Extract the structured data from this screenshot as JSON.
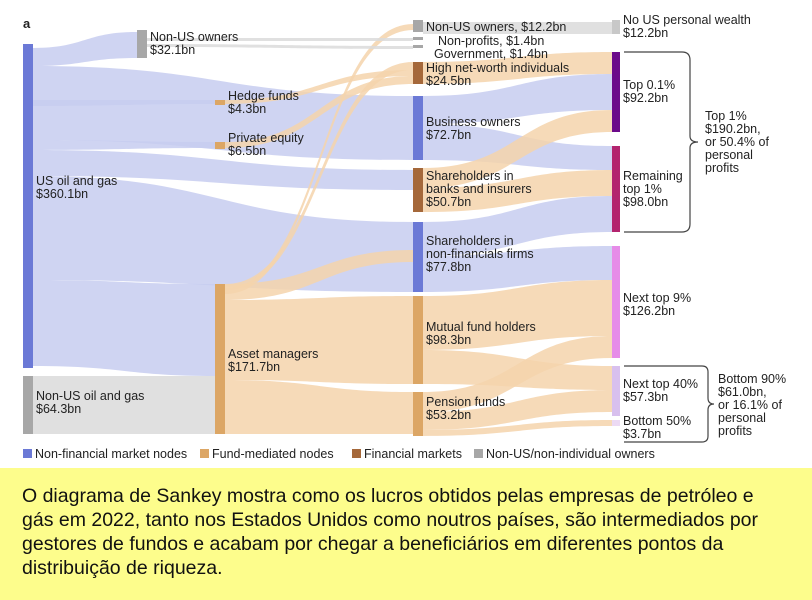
{
  "panel_letter": "a",
  "colors": {
    "non_financial": "#6b79d6",
    "fund": "#dca665",
    "financial": "#a5683a",
    "non_us": "#a7a7a7",
    "top01": "#6b0a8a",
    "remaining1": "#b3246e",
    "nexttop9": "#e68ce8",
    "next40": "#d8c0ee",
    "bottom50": "#ecdaf4",
    "nowealth": "#c8c8c8",
    "flow_blue": "#c7cdf0",
    "flow_orange": "#f4d4ab",
    "flow_gray": "#dadada"
  },
  "nodes": {
    "us_oil": {
      "name": "US oil and gas",
      "value": "$360.1bn"
    },
    "nonus_oil": {
      "name": "Non-US oil and gas",
      "value": "$64.3bn"
    },
    "nonus_owners1": {
      "name": "Non-US owners",
      "value": "$32.1bn"
    },
    "hedge": {
      "name": "Hedge funds",
      "value": "$4.3bn"
    },
    "pe": {
      "name": "Private equity",
      "value": "$6.5bn"
    },
    "asset": {
      "name": "Asset managers",
      "value": "$171.7bn"
    },
    "nonus_owners2": {
      "label": "Non-US owners, $12.2bn"
    },
    "nonprofits": {
      "label": "Non-profits, $1.4bn"
    },
    "government": {
      "label": "Government, $1.4bn"
    },
    "hnwi": {
      "name": "High net-worth individuals",
      "value": "$24.5bn"
    },
    "business": {
      "name": "Business owners",
      "value": "$72.7bn"
    },
    "sh_banks": {
      "name1": "Shareholders in",
      "name2": "banks and insurers",
      "value": "$50.7bn"
    },
    "sh_nonfin": {
      "name1": "Shareholders in",
      "name2": "non-financials firms",
      "value": "$77.8bn"
    },
    "mutual": {
      "name": "Mutual fund holders",
      "value": "$98.3bn"
    },
    "pension": {
      "name": "Pension funds",
      "value": "$53.2bn"
    },
    "nowealth": {
      "name": "No US personal wealth",
      "value": "$12.2bn"
    },
    "top01": {
      "name": "Top 0.1%",
      "value": "$92.2bn"
    },
    "remaining1": {
      "name1": "Remaining",
      "name2": "top 1%",
      "value": "$98.0bn"
    },
    "nexttop9": {
      "name": "Next top 9%",
      "value": "$126.2bn"
    },
    "next40": {
      "name": "Next top 40%",
      "value": "$57.3bn"
    },
    "bottom50": {
      "name": "Bottom 50%",
      "value": "$3.7bn"
    }
  },
  "brackets": {
    "top1": {
      "l1": "Top 1%",
      "l2": "$190.2bn,",
      "l3": "or 50.4% of",
      "l4": "personal",
      "l5": "profits"
    },
    "bottom90": {
      "l1": "Bottom 90%",
      "l2": "$61.0bn,",
      "l3": "or 16.1% of",
      "l4": "personal",
      "l5": "profits"
    }
  },
  "legend": {
    "non_financial": "Non-financial market nodes",
    "fund": "Fund-mediated nodes",
    "financial": "Financial markets",
    "non_us": "Non-US/non-individual owners"
  },
  "caption": "O diagrama de Sankey mostra como os lucros obtidos pelas empresas de petróleo e gás em 2022, tanto nos Estados Unidos como noutros países, são intermediados por gestores de fundos e acabam por chegar a beneficiários em diferentes pontos da distribuição de riqueza."
}
